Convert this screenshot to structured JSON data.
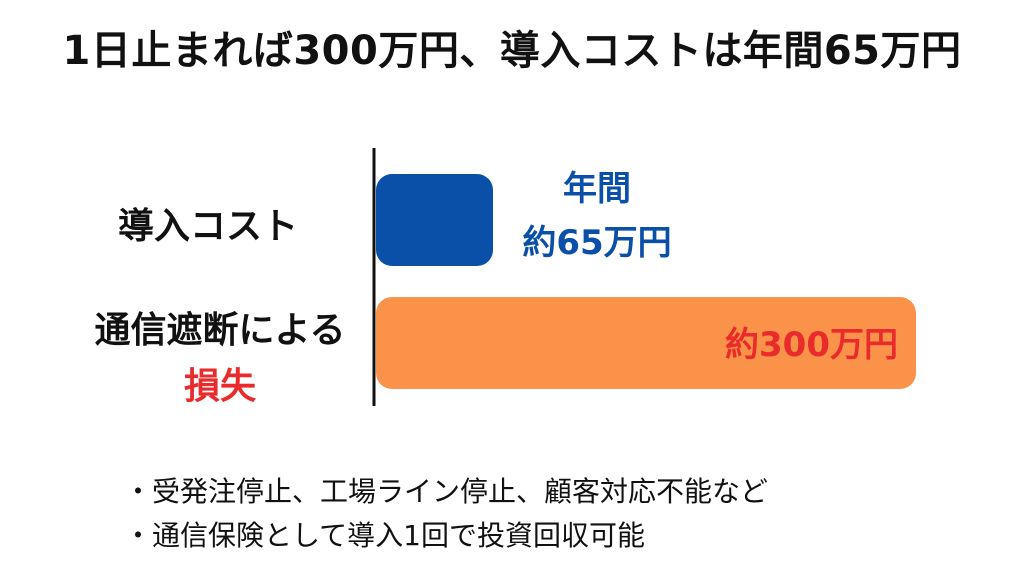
{
  "title": "1日止まれば300万円、導入コストは年間65万円",
  "colors": {
    "cost_bar": "#0a4fa8",
    "loss_bar": "#fa924a",
    "cost_label": "#0a4fa8",
    "loss_label": "#ea2b2b",
    "loss_word": "#ea2b2b"
  },
  "chart_data": {
    "type": "bar",
    "orientation": "horizontal",
    "categories": [
      "導入コスト",
      "通信遮断による損失"
    ],
    "values": [
      65,
      300
    ],
    "unit": "万円",
    "data_labels": [
      "年間\n約65万円",
      "約300万円"
    ],
    "grid": false
  },
  "categories_display": {
    "cost": "導入コスト",
    "loss_line1": "通信遮断による",
    "loss_line2": "損失"
  },
  "data_label_lines": {
    "cost_line1": "年間",
    "cost_line2": "約65万円",
    "loss": "約300万円"
  },
  "bullets": [
    "・受発注停止、工場ライン停止、顧客対応不能など",
    "・通信保険として導入1回で投資回収可能"
  ]
}
